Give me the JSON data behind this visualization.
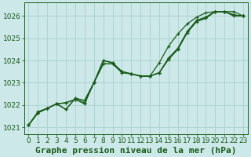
{
  "title": "Graphe pression niveau de la mer (hPa)",
  "background_color": "#cce8e8",
  "grid_color": "#aacfcf",
  "line_color": "#1a5c1a",
  "xlim": [
    -0.5,
    23.5
  ],
  "ylim": [
    1020.7,
    1026.6
  ],
  "yticks": [
    1021,
    1022,
    1023,
    1024,
    1025,
    1026
  ],
  "xticks": [
    0,
    1,
    2,
    3,
    4,
    5,
    6,
    7,
    8,
    9,
    10,
    11,
    12,
    13,
    14,
    15,
    16,
    17,
    18,
    19,
    20,
    21,
    22,
    23
  ],
  "series": [
    [
      1021.1,
      1021.7,
      1021.85,
      1022.05,
      1022.1,
      1022.25,
      1022.05,
      1023.0,
      1023.85,
      1023.85,
      1023.5,
      1023.4,
      1023.3,
      1023.3,
      1023.9,
      1024.65,
      1025.2,
      1025.65,
      1025.95,
      1026.15,
      1026.2,
      1026.2,
      1026.2,
      1026.0
    ],
    [
      1021.1,
      1021.65,
      1021.85,
      1022.05,
      1022.1,
      1022.25,
      1022.1,
      1023.0,
      1023.85,
      1023.85,
      1023.45,
      1023.4,
      1023.3,
      1023.3,
      1023.45,
      1024.05,
      1024.5,
      1025.25,
      1025.75,
      1025.9,
      1026.2,
      1026.2,
      1026.0,
      1026.0
    ],
    [
      1021.1,
      1021.65,
      1021.85,
      1022.05,
      1021.8,
      1022.3,
      1022.2,
      1023.0,
      1024.0,
      1023.9,
      1023.5,
      1023.4,
      1023.3,
      1023.3,
      1023.45,
      1024.1,
      1024.55,
      1025.3,
      1025.8,
      1025.95,
      1026.2,
      1026.2,
      1026.05,
      1026.0
    ],
    [
      1021.1,
      1021.65,
      1021.85,
      1022.05,
      1021.8,
      1022.3,
      1022.2,
      1023.0,
      1024.0,
      1023.9,
      1023.5,
      1023.4,
      1023.3,
      1023.3,
      1023.45,
      1024.1,
      1024.55,
      1025.3,
      1025.8,
      1025.95,
      1026.2,
      1026.2,
      1026.05,
      1026.0
    ]
  ],
  "marker_size": 3.5,
  "line_width": 0.9,
  "title_fontsize": 8,
  "tick_fontsize": 6.5
}
